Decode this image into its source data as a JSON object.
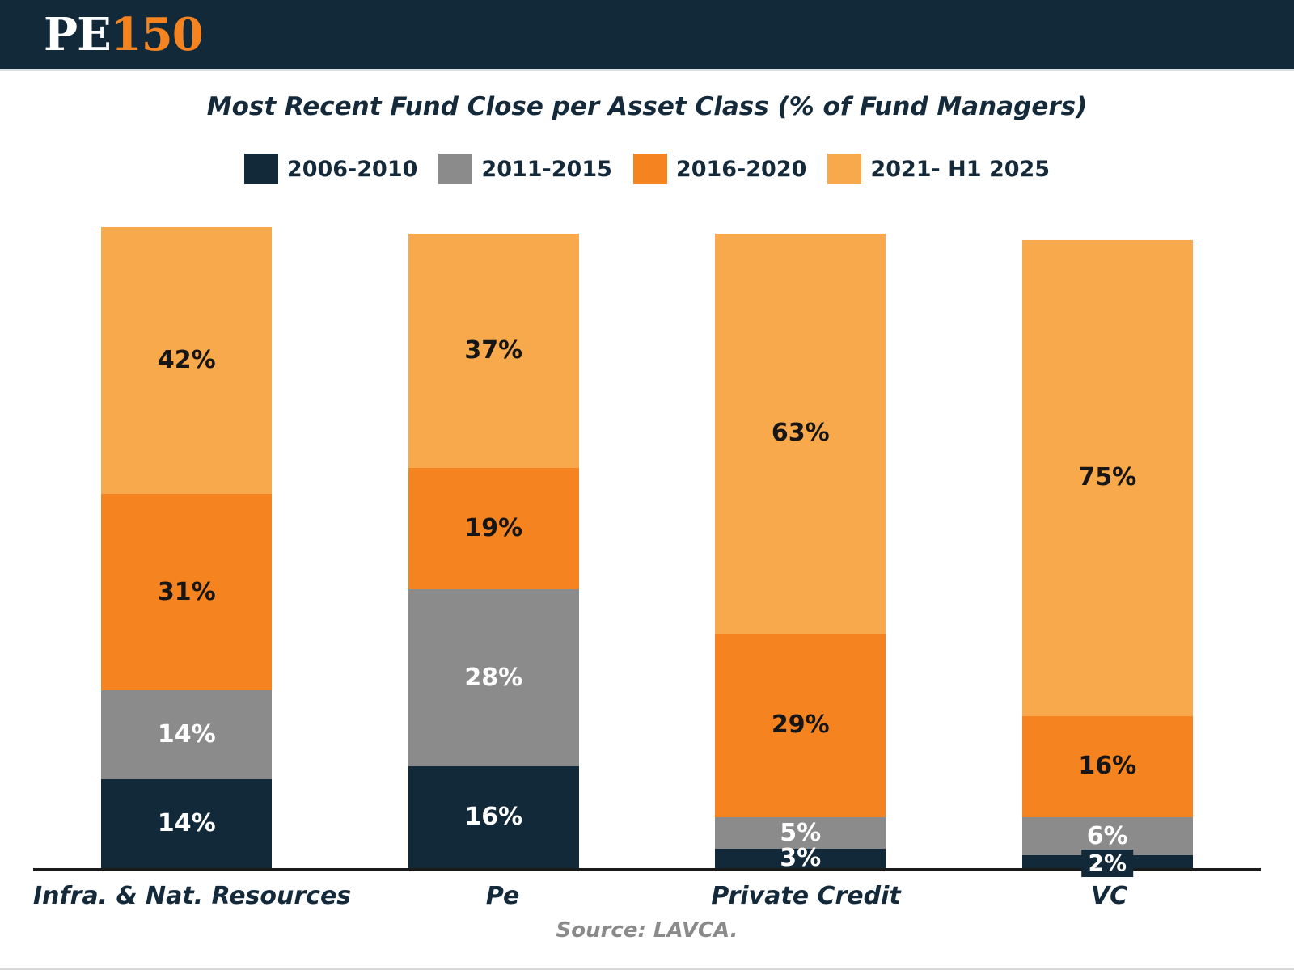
{
  "header": {
    "logo_pe": "PE",
    "logo_150": "150"
  },
  "chart_data": {
    "type": "bar",
    "stacked": true,
    "title": "Most Recent Fund Close per Asset Class (% of Fund Managers)",
    "value_suffix": "%",
    "legend_position": "top",
    "grid": false,
    "ylim": [
      0,
      101
    ],
    "categories": [
      "Infra. & Nat. Resources",
      "Pe",
      "Private Credit",
      "VC"
    ],
    "series": [
      {
        "name": "2006-2010",
        "color": "#12293A",
        "label_color": "#FFFFFF",
        "values": [
          14,
          16,
          3,
          2
        ]
      },
      {
        "name": "2011-2015",
        "color": "#8B8B8B",
        "label_color": "#FFFFFF",
        "values": [
          14,
          28,
          5,
          6
        ]
      },
      {
        "name": "2016-2020",
        "color": "#F5831F",
        "label_color": "#161616",
        "values": [
          31,
          19,
          29,
          16
        ]
      },
      {
        "name": "2021- H1 2025",
        "color": "#F8A94C",
        "label_color": "#161616",
        "values": [
          42,
          37,
          63,
          75
        ]
      }
    ]
  },
  "source": "Source: LAVCA."
}
